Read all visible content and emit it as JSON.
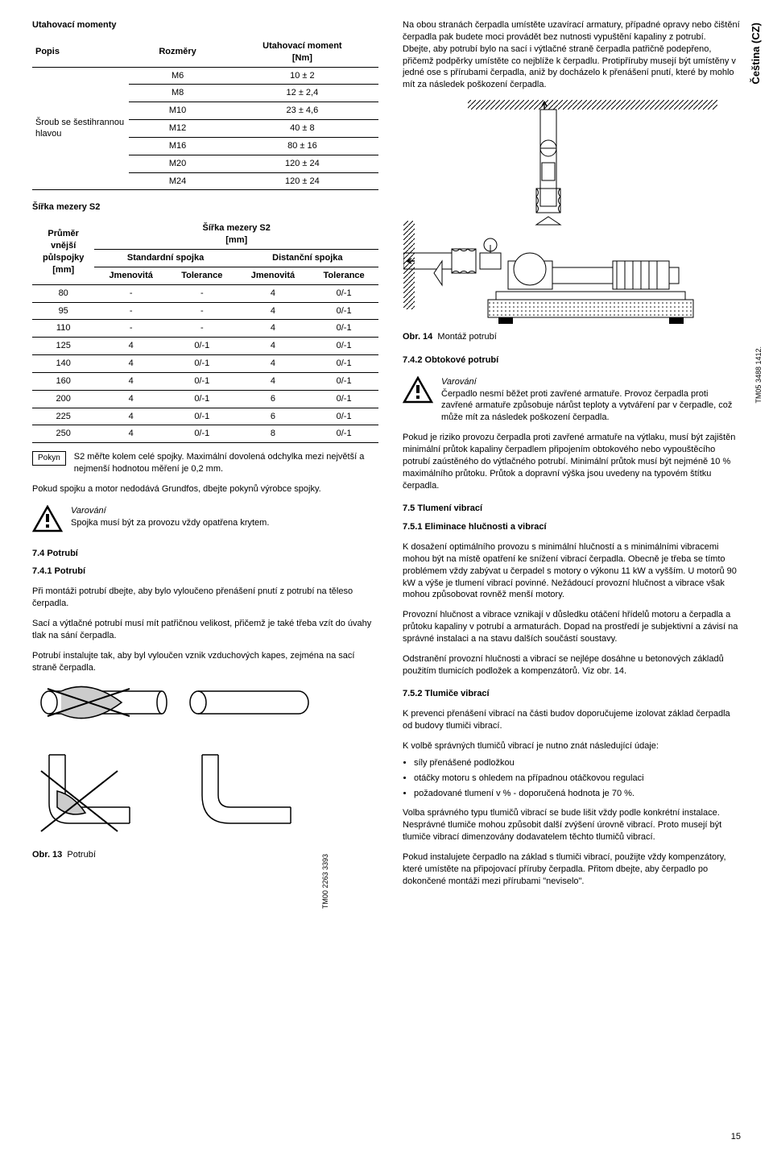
{
  "side": {
    "lang": "Čeština (CZ)",
    "code1": "TM05 3488 1412.",
    "code2": "TM00 2263 3393"
  },
  "page_number": "15",
  "left": {
    "h_torque": "Utahovací momenty",
    "torque_table": {
      "headers": [
        "Popis",
        "Rozměry",
        "Utahovací moment\n[Nm]"
      ],
      "row_label": "Šroub se šestihrannou hlavou",
      "rows": [
        [
          "M6",
          "10 ± 2"
        ],
        [
          "M8",
          "12 ± 2,4"
        ],
        [
          "M10",
          "23 ± 4,6"
        ],
        [
          "M12",
          "40 ± 8"
        ],
        [
          "M16",
          "80 ± 16"
        ],
        [
          "M20",
          "120 ± 24"
        ],
        [
          "M24",
          "120 ± 24"
        ]
      ]
    },
    "h_s2gap": "Šířka mezery S2",
    "s2_table": {
      "col_diam": "Průměr vnější půlspojky [mm]",
      "group_header": "Šířka mezery S2\n[mm]",
      "sub_std": "Standardní spojka",
      "sub_dist": "Distanční spojka",
      "sub_nom": "Jmenovitá",
      "sub_tol": "Tolerance",
      "rows": [
        [
          "80",
          "-",
          "-",
          "4",
          "0/-1"
        ],
        [
          "95",
          "-",
          "-",
          "4",
          "0/-1"
        ],
        [
          "110",
          "-",
          "-",
          "4",
          "0/-1"
        ],
        [
          "125",
          "4",
          "0/-1",
          "4",
          "0/-1"
        ],
        [
          "140",
          "4",
          "0/-1",
          "4",
          "0/-1"
        ],
        [
          "160",
          "4",
          "0/-1",
          "4",
          "0/-1"
        ],
        [
          "200",
          "4",
          "0/-1",
          "6",
          "0/-1"
        ],
        [
          "225",
          "4",
          "0/-1",
          "6",
          "0/-1"
        ],
        [
          "250",
          "4",
          "0/-1",
          "8",
          "0/-1"
        ]
      ]
    },
    "pokyn_label": "Pokyn",
    "pokyn_text": "S2 měřte kolem celé spojky. Maximální dovolená odchylka mezi největší a nejmenší hodnotou měření je 0,2 mm.",
    "after_pokyn": "Pokud spojku a motor nedodává Grundfos, dbejte pokynů výrobce spojky.",
    "warn_label": "Varování",
    "warn_text": "Spojka musí být za provozu vždy opatřena krytem.",
    "h74": "7.4 Potrubí",
    "h741": "7.4.1 Potrubí",
    "p741a": "Při montáži potrubí dbejte, aby bylo vyloučeno přenášení pnutí z potrubí na těleso čerpadla.",
    "p741b": "Sací a výtlačné potrubí musí mít patřičnou velikost, přičemž je také třeba vzít do úvahy tlak na sání čerpadla.",
    "p741c": "Potrubí instalujte tak, aby byl vyloučen vznik vzduchových kapes, zejména na sací straně čerpadla.",
    "fig13": "Obr. 13",
    "fig13_label": "Potrubí"
  },
  "right": {
    "intro": "Na obou stranách čerpadla umístěte uzavírací armatury, případné opravy nebo čištění čerpadla pak budete moci provádět bez nutnosti vypuštění kapaliny z potrubí.\nDbejte, aby potrubí bylo na sací i výtlačné straně čerpadla patřičně podepřeno, přičemž podpěrky umístěte co nejblíže k čerpadlu. Protipříruby musejí být umístěny v jedné ose s přírubami čerpadla, aniž by docházelo k přenášení pnutí, které by mohlo mít za následek poškození čerpadla.",
    "fig14": "Obr. 14",
    "fig14_label": "Montáž potrubí",
    "h742": "7.4.2 Obtokové potrubí",
    "warn2_label": "Varování",
    "warn2_text": "Čerpadlo nesmí běžet proti zavřené armatuře. Provoz čerpadla proti zavřené armatuře způsobuje nárůst teploty a vytváření par v čerpadle, což může mít za následek poškození čerpadla.",
    "p742": "Pokud je riziko provozu čerpadla proti zavřené armatuře na výtlaku, musí být zajištěn minimální průtok kapaliny čerpadlem připojením obtokového nebo vypouštěcího potrubí zaústěného do výtlačného potrubí. Minimální průtok musí být nejméně 10 % maximálního průtoku. Průtok a dopravní výška jsou uvedeny na typovém štítku čerpadla.",
    "h75": "7.5 Tlumení vibrací",
    "h751": "7.5.1 Eliminace hlučnosti a vibrací",
    "p751a": "K dosažení optimálního provozu s minimální hlučností a s minimálními vibracemi mohou být na místě opatření ke snížení vibrací čerpadla. Obecně je třeba se tímto problémem vždy zabývat u čerpadel s motory o výkonu 11 kW a vyšším. U motorů 90 kW a výše je tlumení vibrací povinné. Nežádoucí provozní hlučnost a vibrace však mohou způsobovat rovněž menší motory.",
    "p751b": "Provozní hlučnost a vibrace vznikají v důsledku otáčení hřídelů motoru a čerpadla a průtoku kapaliny v potrubí a armaturách. Dopad na prostředí je subjektivní a závisí na správné instalaci a na stavu dalších součástí soustavy.",
    "p751c": "Odstranění provozní hlučnosti a vibrací se nejlépe dosáhne u betonových základů použitím tlumicích podložek a kompenzátorů. Viz obr. 14.",
    "h752": "7.5.2 Tlumiče vibrací",
    "p752a": "K prevenci přenášení vibrací na části budov doporučujeme izolovat základ čerpadla od budovy tlumiči vibrací.",
    "p752b": "K volbě správných tlumičů vibrací je nutno znát následující údaje:",
    "bullets": [
      "síly přenášené podložkou",
      "otáčky motoru s ohledem na případnou otáčkovou regulaci",
      "požadované tlumení v % - doporučená hodnota je 70 %."
    ],
    "p752c": "Volba správného typu tlumičů vibrací se bude lišit vždy podle konkrétní instalace. Nesprávné tlumiče mohou způsobit další zvýšení úrovně vibrací. Proto musejí být tlumiče vibrací dimenzovány dodavatelem těchto tlumičů vibrací.",
    "p752d": "Pokud instalujete čerpadlo na základ s tlumiči vibrací, použijte vždy kompenzátory, které umístěte na připojovací příruby čerpadla. Přitom dbejte, aby čerpadlo po dokončené montáži mezi přírubami \"neviselo\"."
  }
}
